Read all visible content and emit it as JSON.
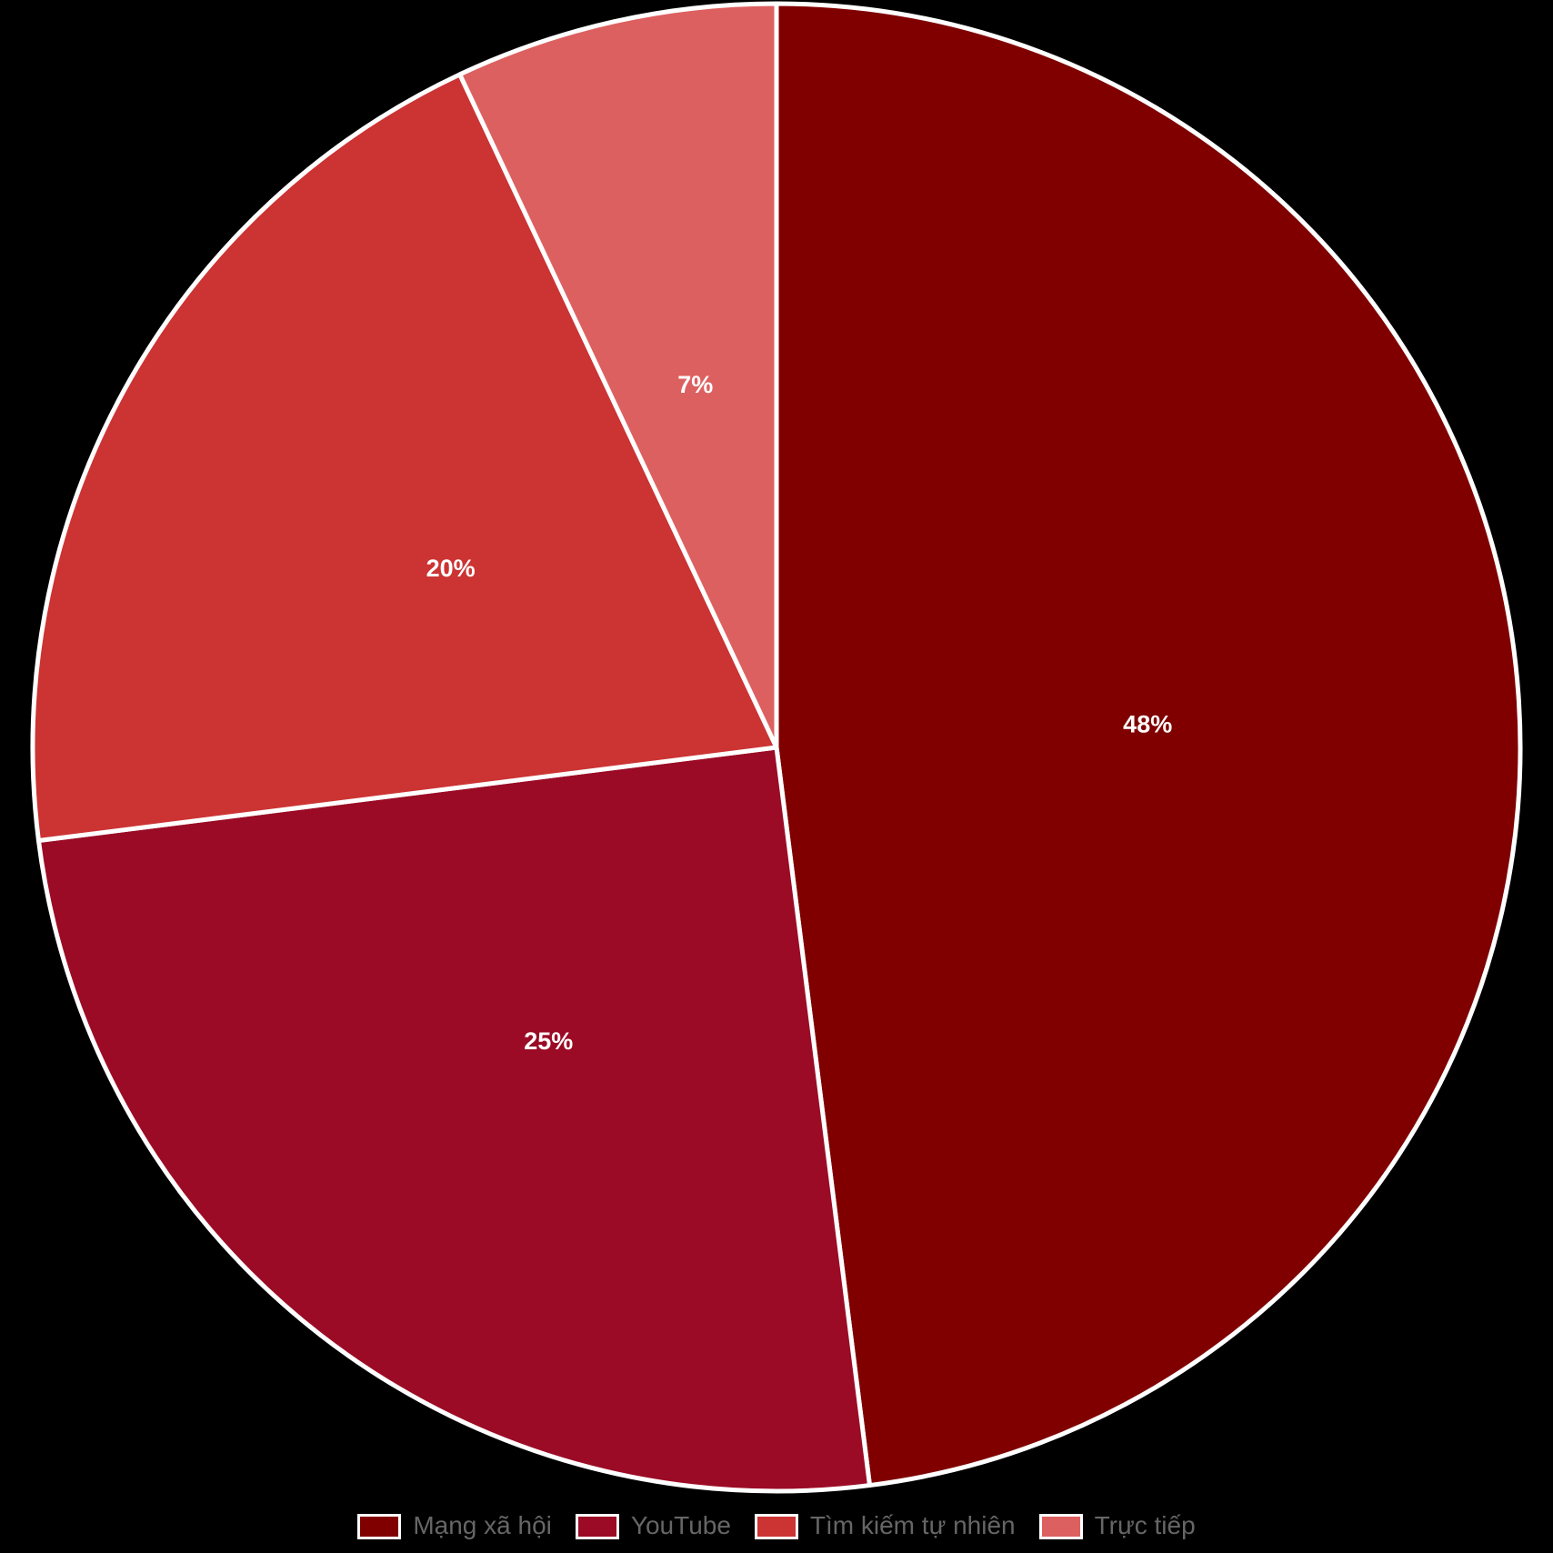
{
  "background_color": "#000000",
  "chart_data": {
    "type": "pie",
    "title": "",
    "categories": [
      "Mạng xã hội",
      "YouTube",
      "Tìm kiếm tự nhiên",
      "Trực tiếp"
    ],
    "values": [
      48,
      25,
      20,
      7
    ],
    "slice_labels": [
      "48%",
      "25%",
      "20%",
      "7%"
    ],
    "colors": [
      "#800000",
      "#9B0B25",
      "#CC3333",
      "#DD6060"
    ],
    "start_angle_deg": 0,
    "direction": "clockwise",
    "slice_border_color": "#FFFFFF",
    "slice_border_width": 5,
    "label_color": "#FFFFFF",
    "label_radius_ratio": 0.5,
    "legend_position": "bottom",
    "legend_text_color": "#666666",
    "legend_swatch_border_color": "#FFFFFF"
  }
}
